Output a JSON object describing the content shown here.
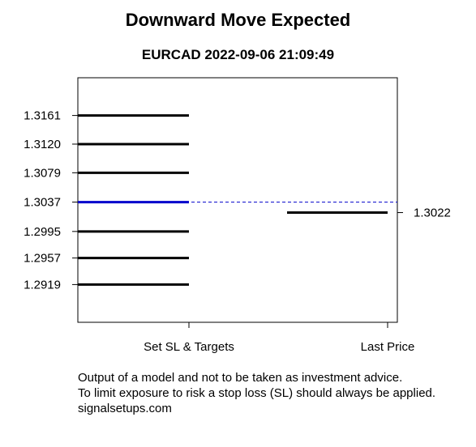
{
  "chart_data": {
    "type": "line",
    "title": "Downward Move Expected",
    "subtitle": "EURCAD 2022-09-06 21:09:49",
    "categories": [
      "Set SL & Targets",
      "Last Price"
    ],
    "set_levels": [
      {
        "value": 1.3161,
        "label": "1.3161",
        "color": "#000000"
      },
      {
        "value": 1.312,
        "label": "1.3120",
        "color": "#000000"
      },
      {
        "value": 1.3079,
        "label": "1.3079",
        "color": "#000000"
      },
      {
        "value": 1.3037,
        "label": "1.3037",
        "color": "#0000cc"
      },
      {
        "value": 1.2995,
        "label": "1.2995",
        "color": "#000000"
      },
      {
        "value": 1.2957,
        "label": "1.2957",
        "color": "#000000"
      },
      {
        "value": 1.2919,
        "label": "1.2919",
        "color": "#000000"
      }
    ],
    "reference_level": 1.3037,
    "reference_color": "#0000cc",
    "last_price": {
      "value": 1.3022,
      "label": "1.3022"
    },
    "ylim": [
      1.2865,
      1.3215
    ],
    "grid": false
  },
  "footer": {
    "line1": "Output of a model and not to be taken as investment advice.",
    "line2": "To limit exposure to risk a stop loss (SL) should always be applied.",
    "line3": "signalsetups.com"
  }
}
